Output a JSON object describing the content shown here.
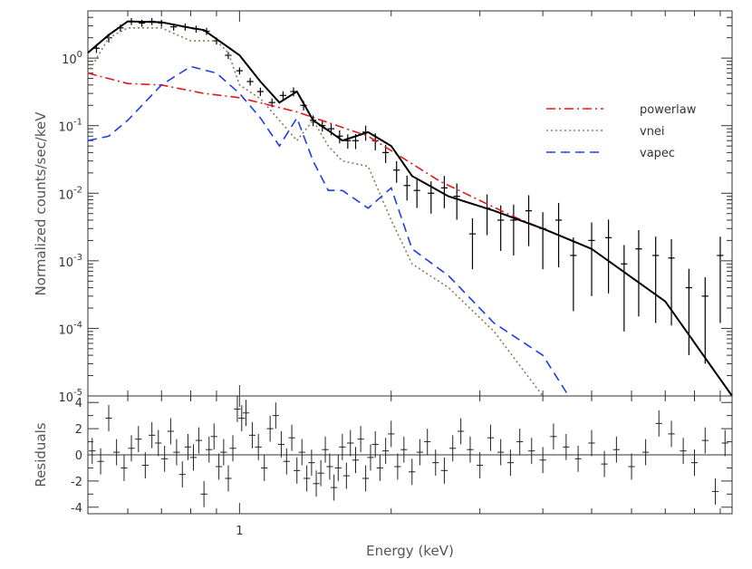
{
  "chart_data": [
    {
      "type": "line",
      "panel": "spectrum",
      "ylabel": "Normalized counts/sec/keV",
      "xlabel": "",
      "xscale": "log",
      "yscale": "log",
      "xlim": [
        0.5,
        9.5
      ],
      "ylim": [
        1e-05,
        5
      ],
      "x_ticks": [
        {
          "value": 1,
          "label": "1"
        }
      ],
      "y_ticks": [
        {
          "value": 1,
          "label": "10^0",
          "base": "10",
          "exp": "0"
        },
        {
          "value": 0.1,
          "label": "10^-1",
          "base": "10",
          "exp": "-1"
        },
        {
          "value": 0.01,
          "label": "10^-2",
          "base": "10",
          "exp": "-2"
        },
        {
          "value": 0.001,
          "label": "10^-3",
          "base": "10",
          "exp": "-3"
        },
        {
          "value": 0.0001,
          "label": "10^-4",
          "base": "10",
          "exp": "-4"
        },
        {
          "value": 1e-05,
          "label": "10^-5",
          "base": "10",
          "exp": "-5"
        }
      ],
      "legend_position": "right",
      "colors": {
        "data": "#000000",
        "total": "#000000",
        "powerlaw": "#e8141c",
        "vnei": "#8a7a5a",
        "vapec": "#1e3ce8"
      },
      "series": [
        {
          "name": "powerlaw",
          "style": "dash-dot",
          "color": "#e8141c",
          "x": [
            0.5,
            0.6,
            0.7,
            0.85,
            1.0,
            1.3,
            1.8,
            2.5,
            3.5,
            5.0,
            7.0,
            9.5
          ],
          "y": [
            0.6,
            0.42,
            0.4,
            0.3,
            0.26,
            0.16,
            0.07,
            0.015,
            0.0045,
            0.0015,
            0.00025,
            1e-05
          ]
        },
        {
          "name": "vnei",
          "style": "dotted",
          "color": "#8a7a5a",
          "x": [
            0.5,
            0.55,
            0.6,
            0.7,
            0.8,
            0.9,
            0.95,
            1.0,
            1.1,
            1.2,
            1.3,
            1.4,
            1.5,
            1.6,
            1.8,
            2.0,
            2.2,
            2.6,
            3.2,
            4.0
          ],
          "y": [
            0.6,
            2.0,
            2.8,
            2.8,
            1.8,
            1.8,
            1.2,
            0.4,
            0.25,
            0.12,
            0.06,
            0.12,
            0.05,
            0.03,
            0.025,
            0.004,
            0.0009,
            0.0004,
            9e-05,
            1e-05
          ]
        },
        {
          "name": "vapec",
          "style": "dashed",
          "color": "#1e3ce8",
          "x": [
            0.5,
            0.55,
            0.6,
            0.7,
            0.8,
            0.9,
            1.0,
            1.1,
            1.2,
            1.3,
            1.4,
            1.5,
            1.6,
            1.8,
            2.0,
            2.2,
            2.6,
            3.2,
            4.0,
            4.5
          ],
          "y": [
            0.06,
            0.07,
            0.12,
            0.4,
            0.75,
            0.6,
            0.3,
            0.13,
            0.05,
            0.13,
            0.03,
            0.011,
            0.011,
            0.006,
            0.012,
            0.0015,
            0.0006,
            0.00012,
            4e-05,
            1e-05
          ]
        },
        {
          "name": "",
          "style": "solid",
          "color": "#000000",
          "x": [
            0.5,
            0.55,
            0.6,
            0.7,
            0.8,
            0.85,
            1.0,
            1.1,
            1.2,
            1.3,
            1.4,
            1.5,
            1.6,
            1.8,
            2.0,
            2.2,
            2.6,
            3.2,
            4.0,
            5.0,
            7.0,
            9.5
          ],
          "y": [
            1.2,
            2.2,
            3.5,
            3.4,
            2.8,
            2.6,
            1.1,
            0.45,
            0.22,
            0.32,
            0.12,
            0.085,
            0.06,
            0.08,
            0.05,
            0.018,
            0.009,
            0.0055,
            0.003,
            0.0015,
            0.00025,
            1e-05
          ]
        }
      ],
      "data_points": {
        "x": [
          0.52,
          0.55,
          0.58,
          0.61,
          0.64,
          0.67,
          0.7,
          0.74,
          0.78,
          0.82,
          0.86,
          0.9,
          0.95,
          1.0,
          1.05,
          1.1,
          1.16,
          1.22,
          1.28,
          1.34,
          1.4,
          1.46,
          1.52,
          1.58,
          1.64,
          1.7,
          1.78,
          1.86,
          1.95,
          2.05,
          2.15,
          2.25,
          2.4,
          2.55,
          2.7,
          2.9,
          3.1,
          3.3,
          3.5,
          3.75,
          4.0,
          4.3,
          4.6,
          5.0,
          5.4,
          5.8,
          6.2,
          6.7,
          7.2,
          7.8,
          8.4,
          9.0
        ],
        "y": [
          1.4,
          2.0,
          2.8,
          3.5,
          3.3,
          3.5,
          3.3,
          2.9,
          2.9,
          2.7,
          2.5,
          1.8,
          1.1,
          0.65,
          0.45,
          0.32,
          0.22,
          0.28,
          0.32,
          0.2,
          0.12,
          0.1,
          0.09,
          0.07,
          0.06,
          0.06,
          0.08,
          0.06,
          0.04,
          0.022,
          0.013,
          0.011,
          0.01,
          0.012,
          0.009,
          0.0025,
          0.006,
          0.004,
          0.004,
          0.0055,
          0.003,
          0.004,
          0.0012,
          0.002,
          0.0022,
          0.0009,
          0.0015,
          0.0012,
          0.0011,
          0.0004,
          0.0003,
          0.0012
        ],
        "yerr_rel": [
          0.15,
          0.15,
          0.12,
          0.12,
          0.12,
          0.12,
          0.12,
          0.12,
          0.12,
          0.12,
          0.12,
          0.12,
          0.12,
          0.12,
          0.13,
          0.14,
          0.15,
          0.15,
          0.15,
          0.16,
          0.18,
          0.18,
          0.2,
          0.22,
          0.24,
          0.25,
          0.25,
          0.28,
          0.3,
          0.35,
          0.4,
          0.45,
          0.5,
          0.5,
          0.55,
          0.7,
          0.6,
          0.65,
          0.7,
          0.7,
          0.75,
          0.8,
          0.85,
          0.85,
          0.85,
          0.9,
          0.9,
          0.9,
          0.9,
          0.9,
          0.9,
          0.9
        ]
      }
    },
    {
      "type": "scatter",
      "panel": "residuals",
      "ylabel": "Residuals",
      "xlabel": "Energy (keV)",
      "xscale": "log",
      "xlim": [
        0.5,
        9.5
      ],
      "ylim": [
        -4.5,
        4.5
      ],
      "y_ticks": [
        -4,
        -2,
        0,
        2,
        4
      ],
      "x_ticks": [
        {
          "value": 1,
          "label": "1"
        }
      ],
      "zero_line": true,
      "series": [
        {
          "name": "",
          "x": [
            0.51,
            0.53,
            0.55,
            0.57,
            0.59,
            0.61,
            0.63,
            0.65,
            0.67,
            0.69,
            0.71,
            0.73,
            0.75,
            0.77,
            0.79,
            0.81,
            0.83,
            0.85,
            0.87,
            0.89,
            0.91,
            0.93,
            0.95,
            0.97,
            0.99,
            1.01,
            1.03,
            1.06,
            1.09,
            1.12,
            1.15,
            1.18,
            1.21,
            1.24,
            1.27,
            1.3,
            1.33,
            1.36,
            1.39,
            1.42,
            1.45,
            1.48,
            1.51,
            1.54,
            1.57,
            1.6,
            1.63,
            1.66,
            1.7,
            1.74,
            1.78,
            1.82,
            1.86,
            1.9,
            1.95,
            2.0,
            2.06,
            2.12,
            2.2,
            2.28,
            2.36,
            2.45,
            2.55,
            2.65,
            2.75,
            2.87,
            3.0,
            3.15,
            3.3,
            3.45,
            3.6,
            3.8,
            4.0,
            4.2,
            4.45,
            4.7,
            5.0,
            5.3,
            5.6,
            6.0,
            6.4,
            6.8,
            7.2,
            7.6,
            8.0,
            8.4,
            8.8,
            9.2
          ],
          "y": [
            0.3,
            -0.5,
            2.8,
            0.2,
            -1.0,
            0.5,
            1.2,
            -0.8,
            1.5,
            0.9,
            -0.3,
            1.8,
            0.2,
            -1.5,
            0.6,
            -0.2,
            1.1,
            -3.0,
            0.4,
            1.4,
            -0.9,
            0.2,
            -1.8,
            0.5,
            3.5,
            2.8,
            3.2,
            1.5,
            0.6,
            -1.0,
            2.0,
            3.0,
            0.8,
            -0.5,
            1.3,
            -1.2,
            0.2,
            -1.8,
            -0.6,
            -2.2,
            -1.4,
            0.4,
            -0.9,
            -2.5,
            -1.0,
            0.6,
            -1.6,
            0.9,
            -0.4,
            1.2,
            -1.8,
            -0.2,
            0.8,
            -1.0,
            0.3,
            1.6,
            -0.9,
            0.4,
            -1.3,
            0.2,
            1.0,
            -0.6,
            -1.2,
            0.5,
            1.8,
            0.4,
            -0.8,
            1.3,
            0.2,
            -0.6,
            1.0,
            0.3,
            -0.4,
            1.4,
            0.6,
            -0.3,
            0.9,
            -0.7,
            0.4,
            -0.9,
            0.2,
            2.4,
            1.6,
            0.3,
            -0.6,
            1.1,
            -2.8,
            0.9
          ],
          "yerr": 1.0
        }
      ]
    }
  ]
}
